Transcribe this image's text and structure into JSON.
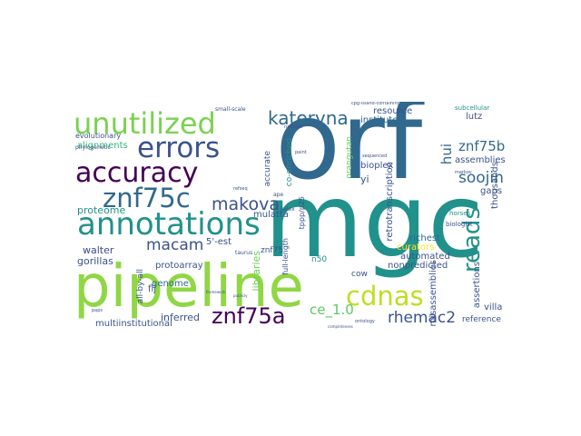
{
  "words": [
    {
      "text": "orf",
      "color": "#31688e"
    },
    {
      "text": "mgc",
      "color": "#21918c"
    },
    {
      "text": "pipeline",
      "color": "#8fd744"
    },
    {
      "text": "annotations",
      "color": "#21918c"
    },
    {
      "text": "unutilized",
      "color": "#7ad151"
    },
    {
      "text": "errors",
      "color": "#3b528b"
    },
    {
      "text": "accuracy",
      "color": "#440154"
    },
    {
      "text": "znf75c",
      "color": "#31688e"
    },
    {
      "text": "cdnas",
      "color": "#bddf26"
    },
    {
      "text": "znf75a",
      "color": "#440154"
    },
    {
      "text": "reads",
      "color": "#21918c"
    },
    {
      "text": "kateryna",
      "color": "#31688e"
    },
    {
      "text": "makova",
      "color": "#3b528b"
    },
    {
      "text": "macam",
      "color": "#3b528b"
    },
    {
      "text": "rhemac2",
      "color": "#3b528b"
    },
    {
      "text": "soojin",
      "color": "#31688e"
    },
    {
      "text": "znf75b",
      "color": "#31688e"
    },
    {
      "text": "ce_1.0",
      "color": "#5ec962"
    },
    {
      "text": "hui",
      "color": "#31688e"
    },
    {
      "text": "resource",
      "color": "#3b528b"
    },
    {
      "text": "institutes",
      "color": "#31688e"
    },
    {
      "text": "alignments",
      "color": "#35b779"
    },
    {
      "text": "proteome",
      "color": "#21918c"
    },
    {
      "text": "gorillas",
      "color": "#3b528b"
    },
    {
      "text": "walter",
      "color": "#3e4989"
    },
    {
      "text": "automated",
      "color": "#3b528b"
    },
    {
      "text": "richest",
      "color": "#31688e"
    },
    {
      "text": "curators",
      "color": "#fde725"
    },
    {
      "text": "nonpredicted",
      "color": "#3b528b"
    },
    {
      "text": "reference",
      "color": "#3b528b"
    },
    {
      "text": "villa",
      "color": "#3b528b"
    },
    {
      "text": "inferred",
      "color": "#3b528b"
    },
    {
      "text": "multiinstitutional",
      "color": "#3b528b"
    },
    {
      "text": "protoarray",
      "color": "#3b528b"
    },
    {
      "text": "genome",
      "color": "#31688e"
    },
    {
      "text": "libraries",
      "color": "#6ece58"
    },
    {
      "text": "mulatta",
      "color": "#3b528b"
    },
    {
      "text": "bioplex",
      "color": "#3b528b"
    },
    {
      "text": "yi",
      "color": "#3b528b"
    },
    {
      "text": "lutz",
      "color": "#3b528b"
    },
    {
      "text": "assemblies",
      "color": "#3b528b"
    },
    {
      "text": "thousands",
      "color": "#3b528b"
    },
    {
      "text": "gaps",
      "color": "#3b528b"
    },
    {
      "text": "misassemblies",
      "color": "#3b528b"
    },
    {
      "text": "assertions",
      "color": "#3b528b"
    },
    {
      "text": "retrotranscription",
      "color": "#3b528b"
    },
    {
      "text": "orangutan",
      "color": "#5ec962"
    },
    {
      "text": "accurate",
      "color": "#3b528b"
    },
    {
      "text": "flj",
      "color": "#3b528b"
    },
    {
      "text": "5'-est",
      "color": "#3b528b"
    },
    {
      "text": "evolutionary",
      "color": "#3b528b"
    },
    {
      "text": "phylogenetic",
      "color": "#3b528b"
    },
    {
      "text": "tppp/p25",
      "color": "#3b528b"
    },
    {
      "text": "all-by-all",
      "color": "#3b528b"
    },
    {
      "text": "znf75",
      "color": "#3b528b"
    },
    {
      "text": "n50",
      "color": "#21918c"
    },
    {
      "text": "cow",
      "color": "#3b528b"
    },
    {
      "text": "co-enriched",
      "color": "#21918c"
    },
    {
      "text": "full-length",
      "color": "#3b528b"
    },
    {
      "text": "subcellular",
      "color": "#21918c"
    },
    {
      "text": "horses",
      "color": "#21918c"
    },
    {
      "text": "biologist",
      "color": "#3b528b"
    },
    {
      "text": "small-scale",
      "color": "#3b528b"
    },
    {
      "text": "ape",
      "color": "#3b528b"
    },
    {
      "text": "taurus",
      "color": "#3b528b"
    },
    {
      "text": "selex",
      "color": "#3b528b"
    },
    {
      "text": "sequenced",
      "color": "#3b528b"
    },
    {
      "text": "paint",
      "color": "#3b528b"
    },
    {
      "text": "national",
      "color": "#3b528b"
    },
    {
      "text": "markov",
      "color": "#3b528b"
    },
    {
      "text": "refseq",
      "color": "#3b528b"
    },
    {
      "text": "paps",
      "color": "#3b528b"
    },
    {
      "text": "ontology",
      "color": "#3b528b"
    },
    {
      "text": "publicly",
      "color": "#3b528b"
    },
    {
      "text": "framework",
      "color": "#3b528b"
    },
    {
      "text": "completeness",
      "color": "#3b528b"
    },
    {
      "text": "cpg-island-containing",
      "color": "#3b528b"
    }
  ]
}
